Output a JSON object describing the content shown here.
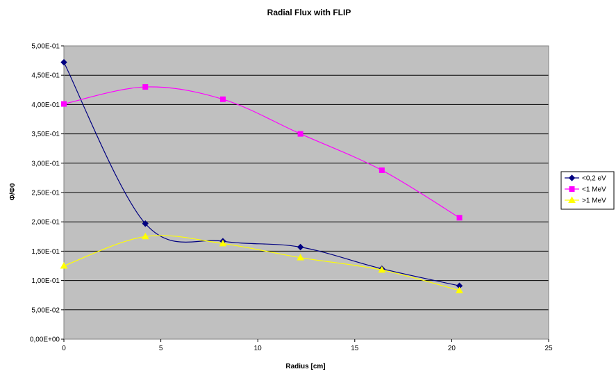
{
  "chart_data": {
    "type": "scatter",
    "title": "Radial Flux with FLIP",
    "xlabel": "Radius [cm]",
    "ylabel": "Φ/Φ0",
    "xlim": [
      0,
      25
    ],
    "ylim": [
      0,
      0.5
    ],
    "x_ticks": [
      "0",
      "5",
      "10",
      "15",
      "20",
      "25"
    ],
    "y_ticks": [
      "0,00E+00",
      "5,00E-02",
      "1,00E-01",
      "1,50E-01",
      "2,00E-01",
      "2,50E-01",
      "3,00E-01",
      "3,50E-01",
      "4,00E-01",
      "4,50E-01",
      "5,00E-01"
    ],
    "grid": "horizontal",
    "plot_background": "#c0c0c0",
    "legend_position": "right",
    "smoothed_lines": true,
    "series": [
      {
        "name": "<0,2 eV",
        "color": "#000080",
        "marker": "diamond",
        "x": [
          0,
          4.2,
          8.2,
          12.2,
          16.4,
          20.4
        ],
        "y": [
          0.472,
          0.197,
          0.167,
          0.157,
          0.12,
          0.091
        ]
      },
      {
        "name": "<1 MeV",
        "color": "#ff00ff",
        "marker": "square",
        "x": [
          0,
          4.2,
          8.2,
          12.2,
          16.4,
          20.4
        ],
        "y": [
          0.401,
          0.43,
          0.409,
          0.35,
          0.288,
          0.207
        ]
      },
      {
        "name": ">1 MeV",
        "color": "#ffff00",
        "marker": "triangle",
        "x": [
          0,
          4.2,
          8.2,
          12.2,
          16.4,
          20.4
        ],
        "y": [
          0.125,
          0.175,
          0.163,
          0.139,
          0.118,
          0.083
        ]
      }
    ]
  }
}
